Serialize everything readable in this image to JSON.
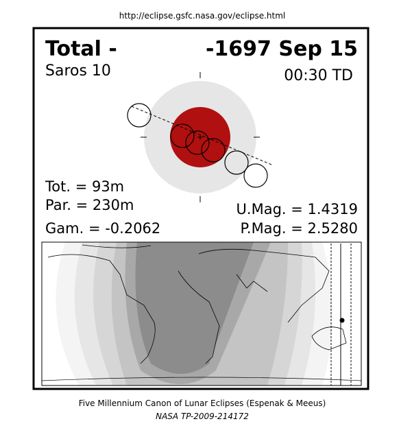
{
  "header": {
    "url": "http://eclipse.gsfc.nasa.gov/eclipse.html"
  },
  "eclipse": {
    "type": "Total  -",
    "date": "-1697 Sep 15",
    "saros": "Saros  10",
    "time": "00:30 TD",
    "totality": "Tot. =  93m",
    "partial": "Par. = 230m",
    "gamma": "Gam. = -0.2062",
    "umbral_magnitude": "U.Mag. = 1.4319",
    "penumbral_magnitude": "P.Mag. = 2.5280"
  },
  "footer": {
    "canon": "Five Millennium Canon of Lunar Eclipses (Espenak & Meeus)",
    "reference": "NASA TP-2009-214172"
  }
}
